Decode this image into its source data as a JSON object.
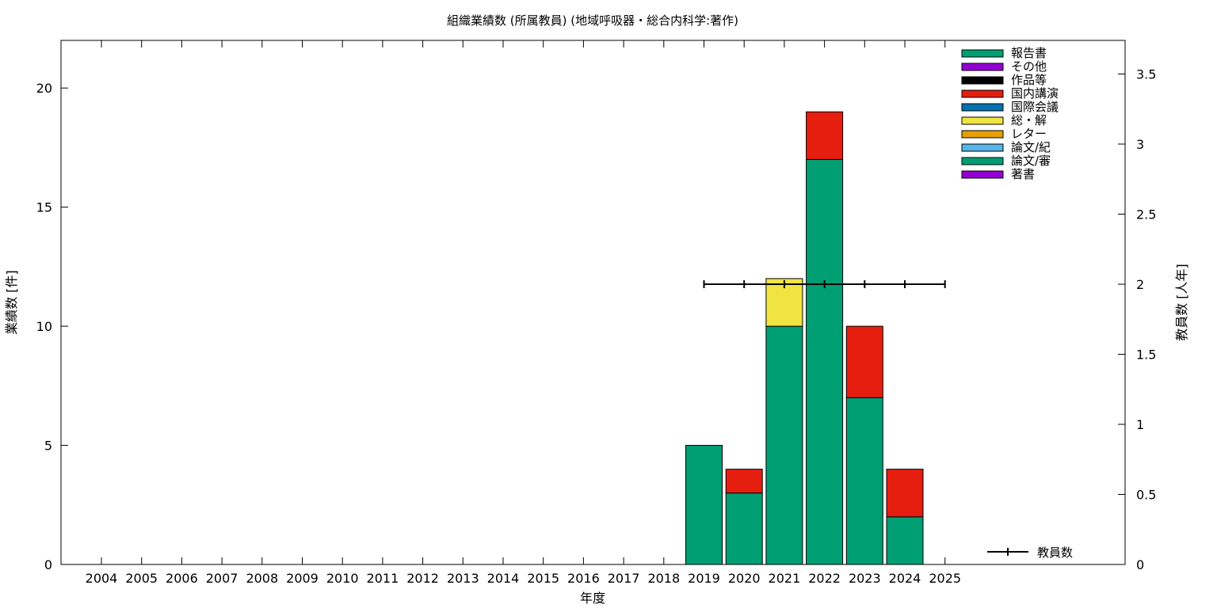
{
  "chart_data": {
    "type": "bar",
    "title": "組織業績数 (所属教員) (地域呼吸器・総合内科学:著作)",
    "xlabel": "年度",
    "ylabel": "業績数 [件]",
    "y2label": "教員数 [人年]",
    "categories": [
      "2004",
      "2005",
      "2006",
      "2007",
      "2008",
      "2009",
      "2010",
      "2011",
      "2012",
      "2013",
      "2014",
      "2015",
      "2016",
      "2017",
      "2018",
      "2019",
      "2020",
      "2021",
      "2022",
      "2023",
      "2024",
      "2025"
    ],
    "ylim": [
      0,
      22
    ],
    "yticks": [
      0,
      5,
      10,
      15,
      20
    ],
    "y2lim": [
      0,
      3.74
    ],
    "y2ticks": [
      "0",
      "0.5",
      "1",
      "1.5",
      "2",
      "2.5",
      "3",
      "3.5"
    ],
    "legend_position": "top-right",
    "series": [
      {
        "name": "報告書",
        "color": "#009e73",
        "values": [
          0,
          0,
          0,
          0,
          0,
          0,
          0,
          0,
          0,
          0,
          0,
          0,
          0,
          0,
          0,
          0,
          0,
          0,
          0,
          0,
          0,
          0
        ]
      },
      {
        "name": "その他",
        "color": "#9400d3",
        "values": [
          0,
          0,
          0,
          0,
          0,
          0,
          0,
          0,
          0,
          0,
          0,
          0,
          0,
          0,
          0,
          0,
          0,
          0,
          0,
          0,
          0,
          0
        ]
      },
      {
        "name": "作品等",
        "color": "#000000",
        "values": [
          0,
          0,
          0,
          0,
          0,
          0,
          0,
          0,
          0,
          0,
          0,
          0,
          0,
          0,
          0,
          0,
          0,
          0,
          0,
          0,
          0,
          0
        ]
      },
      {
        "name": "国内講演",
        "color": "#e51e10",
        "values": [
          0,
          0,
          0,
          0,
          0,
          0,
          0,
          0,
          0,
          0,
          0,
          0,
          0,
          0,
          0,
          0,
          1,
          0,
          2,
          3,
          2,
          0
        ]
      },
      {
        "name": "国際会議",
        "color": "#0072b2",
        "values": [
          0,
          0,
          0,
          0,
          0,
          0,
          0,
          0,
          0,
          0,
          0,
          0,
          0,
          0,
          0,
          0,
          0,
          0,
          0,
          0,
          0,
          0
        ]
      },
      {
        "name": "総・解",
        "color": "#f0e442",
        "values": [
          0,
          0,
          0,
          0,
          0,
          0,
          0,
          0,
          0,
          0,
          0,
          0,
          0,
          0,
          0,
          0,
          0,
          2,
          0,
          0,
          0,
          0
        ]
      },
      {
        "name": "レター",
        "color": "#e69f00",
        "values": [
          0,
          0,
          0,
          0,
          0,
          0,
          0,
          0,
          0,
          0,
          0,
          0,
          0,
          0,
          0,
          0,
          0,
          0,
          0,
          0,
          0,
          0
        ]
      },
      {
        "name": "論文/紀",
        "color": "#56b4e9",
        "values": [
          0,
          0,
          0,
          0,
          0,
          0,
          0,
          0,
          0,
          0,
          0,
          0,
          0,
          0,
          0,
          0,
          0,
          0,
          0,
          0,
          0,
          0
        ]
      },
      {
        "name": "論文/審",
        "color": "#009e73",
        "values": [
          0,
          0,
          0,
          0,
          0,
          0,
          0,
          0,
          0,
          0,
          0,
          0,
          0,
          0,
          0,
          5,
          3,
          10,
          17,
          7,
          2,
          0
        ]
      },
      {
        "name": "著書",
        "color": "#9400d3",
        "values": [
          0,
          0,
          0,
          0,
          0,
          0,
          0,
          0,
          0,
          0,
          0,
          0,
          0,
          0,
          0,
          0,
          0,
          0,
          0,
          0,
          0,
          0
        ]
      }
    ],
    "line_series": {
      "name": "教員数",
      "color": "#000000",
      "axis": "y2",
      "categories": [
        "2019",
        "2020",
        "2021",
        "2022",
        "2023",
        "2024",
        "2025"
      ],
      "values": [
        2,
        2,
        2,
        2,
        2,
        2,
        2
      ]
    }
  }
}
